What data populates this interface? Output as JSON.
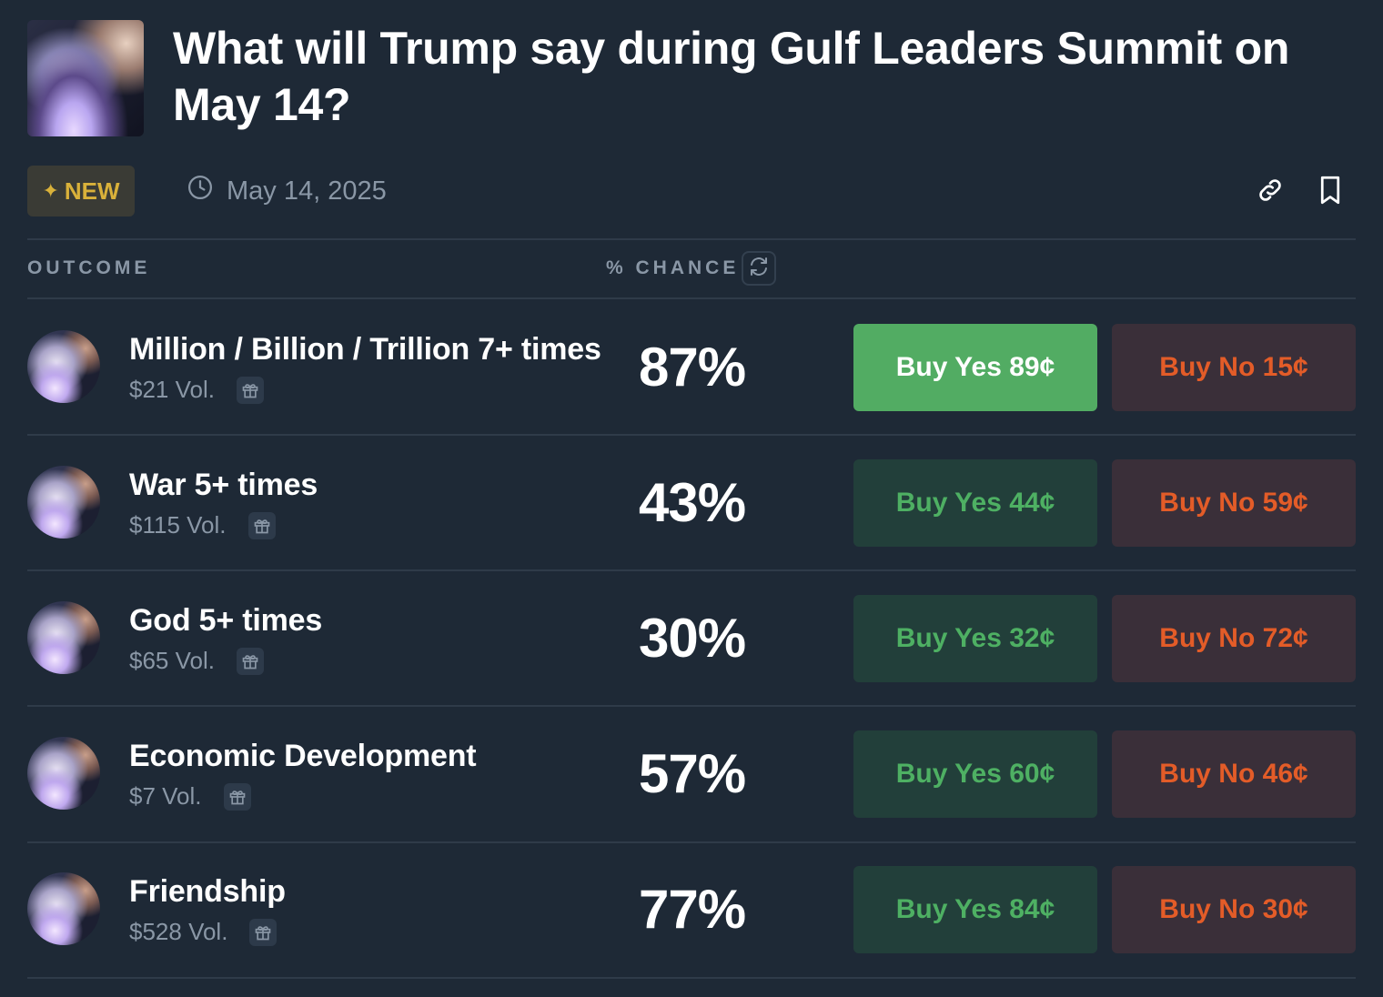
{
  "market": {
    "title": "What will Trump say during Gulf Leaders Summit on May 14?",
    "badge": "NEW",
    "date": "May 14, 2025",
    "thumbnail_icon": "market-image"
  },
  "table": {
    "headers": {
      "outcome": "OUTCOME",
      "chance": "% CHANCE"
    },
    "rows": [
      {
        "label": "Million / Billion / Trillion 7+ times",
        "volume": "$21 Vol.",
        "chance": "87%",
        "yes": "Buy Yes 89¢",
        "no": "Buy No 15¢",
        "yes_selected": true
      },
      {
        "label": "War 5+ times",
        "volume": "$115 Vol.",
        "chance": "43%",
        "yes": "Buy Yes 44¢",
        "no": "Buy No 59¢",
        "yes_selected": false
      },
      {
        "label": "God 5+ times",
        "volume": "$65 Vol.",
        "chance": "30%",
        "yes": "Buy Yes 32¢",
        "no": "Buy No 72¢",
        "yes_selected": false
      },
      {
        "label": "Economic Development",
        "volume": "$7 Vol.",
        "chance": "57%",
        "yes": "Buy Yes 60¢",
        "no": "Buy No 46¢",
        "yes_selected": false
      },
      {
        "label": "Friendship",
        "volume": "$528 Vol.",
        "chance": "77%",
        "yes": "Buy Yes 84¢",
        "no": "Buy No 30¢",
        "yes_selected": false
      }
    ]
  },
  "colors": {
    "background": "#1e2936",
    "yes_text": "#4eb063",
    "yes_active_bg": "#52ac63",
    "no_text": "#e35c28",
    "new_badge": "#d9b13a"
  },
  "icons": [
    "clock-icon",
    "link-icon",
    "bookmark-icon",
    "refresh-icon",
    "gift-icon",
    "sparkle-icon"
  ]
}
